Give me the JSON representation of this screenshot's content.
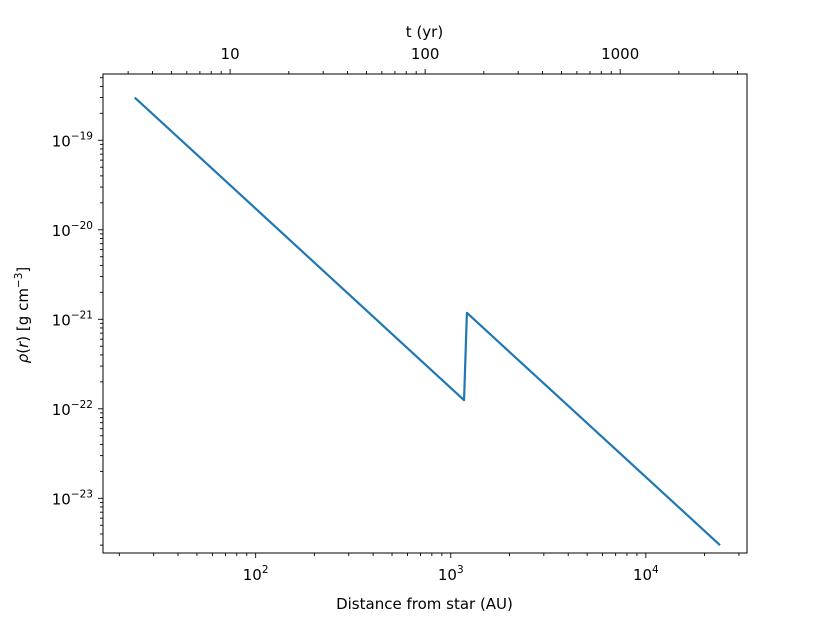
{
  "chart_data": {
    "type": "line",
    "title": "",
    "xlabel": "Distance from star (AU)",
    "ylabel": "ρ(r) [g cm⁻³]",
    "ylabel_parts": {
      "rho": "ρ",
      "open": "(",
      "r": "r",
      "close": ")",
      "units_open": " [g cm",
      "exp": "−3",
      "units_close": "]"
    },
    "secondary_xlabel": "t (yr)",
    "xscale": "log",
    "yscale": "log",
    "xlim": [
      16.5,
      33000
    ],
    "ylim": [
      2.45e-24,
      5.5e-19
    ],
    "xticks": [
      {
        "value": 100,
        "base": "10",
        "exp": "2"
      },
      {
        "value": 1000,
        "base": "10",
        "exp": "3"
      },
      {
        "value": 10000,
        "base": "10",
        "exp": "4"
      }
    ],
    "yticks": [
      {
        "value": 1e-19,
        "base": "10",
        "exp": "−19"
      },
      {
        "value": 1e-20,
        "base": "10",
        "exp": "−20"
      },
      {
        "value": 1e-21,
        "base": "10",
        "exp": "−21"
      },
      {
        "value": 1e-22,
        "base": "10",
        "exp": "−22"
      },
      {
        "value": 1e-23,
        "base": "10",
        "exp": "−23"
      }
    ],
    "secondary_xticks": [
      {
        "value": 10,
        "label": "10"
      },
      {
        "value": 100,
        "label": "100"
      },
      {
        "value": 1000,
        "label": "1000"
      }
    ],
    "secondary_xlim": [
      2.23,
      4470
    ],
    "grid": false,
    "series": [
      {
        "color": "#1f77b4",
        "points": [
          {
            "x": 24,
            "y": 3e-19
          },
          {
            "x": 1170,
            "y": 1.25e-22
          },
          {
            "x": 1210,
            "y": 1.18e-21
          },
          {
            "x": 24000,
            "y": 3e-24
          }
        ]
      }
    ]
  }
}
